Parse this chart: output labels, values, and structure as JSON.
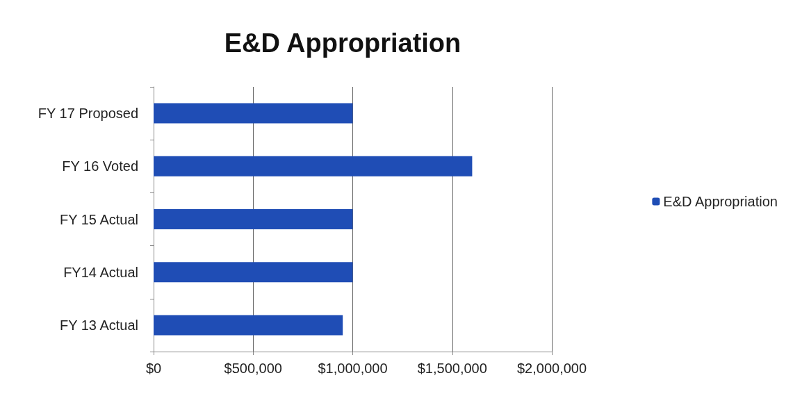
{
  "chart_data": {
    "type": "bar",
    "orientation": "horizontal",
    "title": "E&D Appropriation",
    "categories": [
      "FY 17 Proposed",
      "FY 16 Voted",
      "FY 15 Actual",
      "FY14 Actual",
      "FY 13 Actual"
    ],
    "series": [
      {
        "name": "E&D Appropriation",
        "color": "#1f4db5",
        "values": [
          1000000,
          1600000,
          1000000,
          1000000,
          950000
        ]
      }
    ],
    "xlim": [
      0,
      2000000
    ],
    "xticks": [
      {
        "value": 0,
        "label": "$0"
      },
      {
        "value": 500000,
        "label": "$500,000"
      },
      {
        "value": 1000000,
        "label": "$1,000,000"
      },
      {
        "value": 1500000,
        "label": "$1,500,000"
      },
      {
        "value": 2000000,
        "label": "$2,000,000"
      }
    ],
    "grid": "x",
    "legend": "right"
  }
}
